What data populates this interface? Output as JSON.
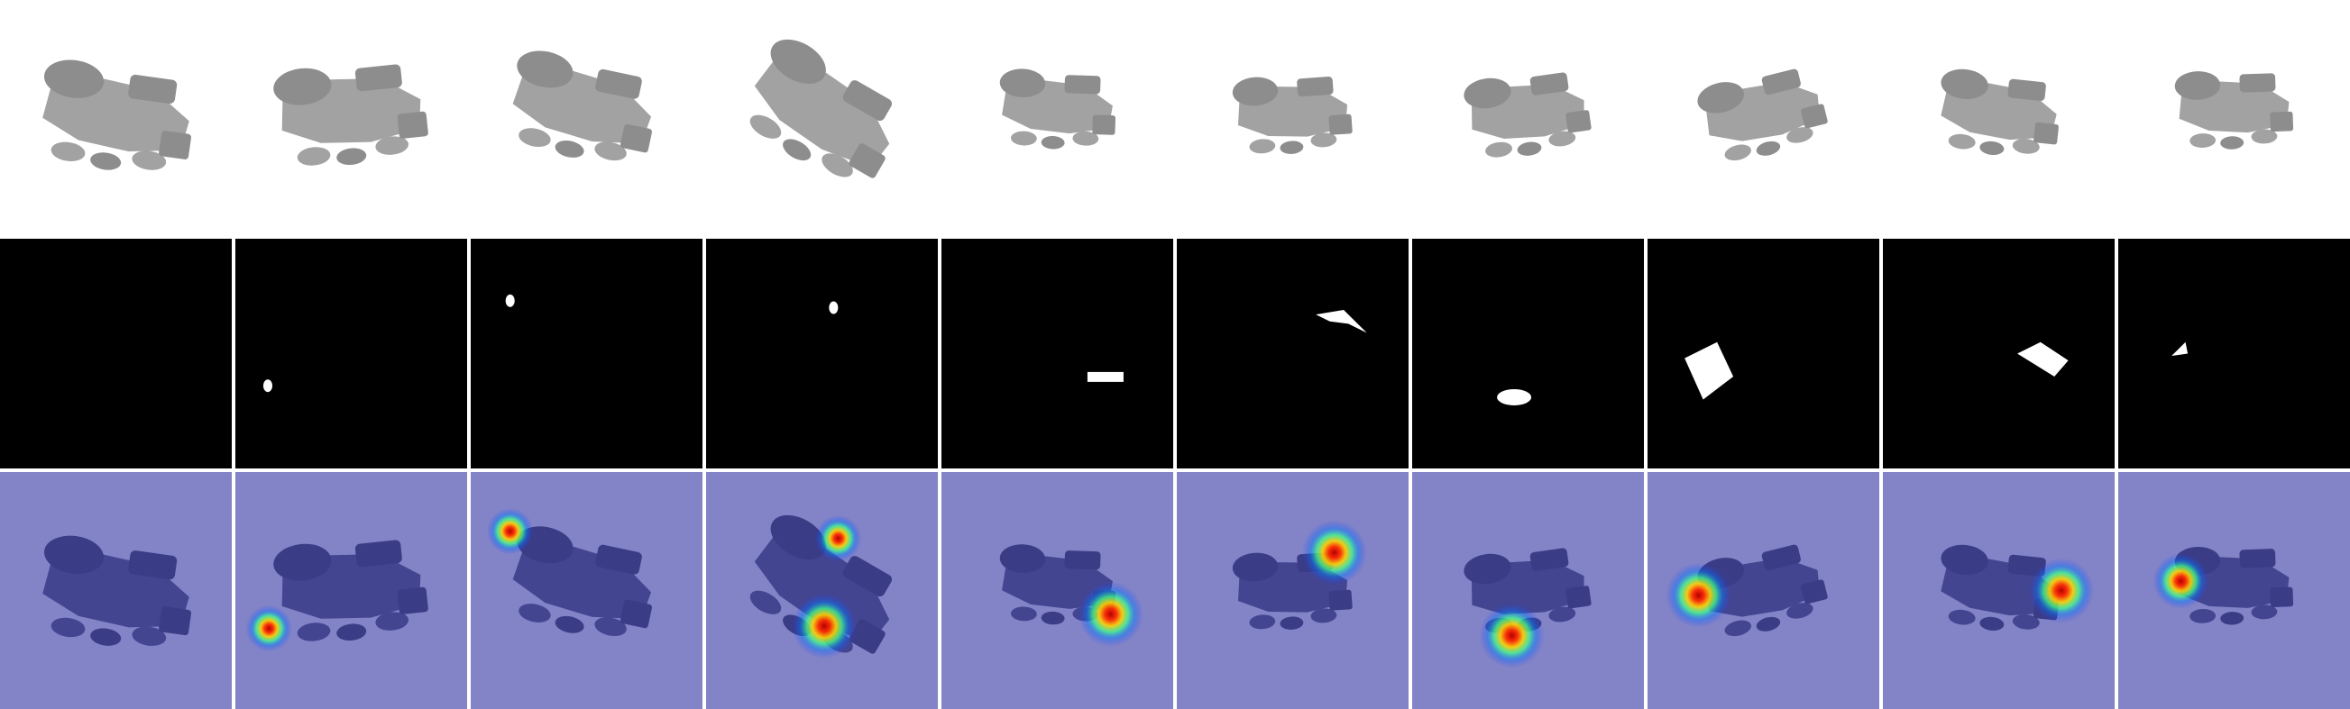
{
  "figure": {
    "rows": [
      "render",
      "mask",
      "heatmap"
    ],
    "columns": 10,
    "colors": {
      "background": "#ffffff",
      "object_gray": "#a2a2a2",
      "object_shade": "#8d8d8d",
      "mask_background": "#000000",
      "mask_fill": "#ffffff",
      "heatmap_background": "#8284c7",
      "heatmap_object": "#434591"
    },
    "panels": [
      {
        "index": 1,
        "mask_region": "none",
        "heat_peaks": []
      },
      {
        "index": 2,
        "mask_region": "tiny-speck",
        "heat_peaks": [
          {
            "u": 0.145,
            "v": 0.66,
            "s": 0.05
          }
        ]
      },
      {
        "index": 3,
        "mask_region": "tiny-speck",
        "heat_peaks": [
          {
            "u": 0.17,
            "v": 0.25,
            "s": 0.05
          }
        ]
      },
      {
        "index": 4,
        "mask_region": "tiny-speck",
        "heat_peaks": [
          {
            "u": 0.57,
            "v": 0.28,
            "s": 0.05
          },
          {
            "u": 0.51,
            "v": 0.65,
            "s": 0.07
          }
        ]
      },
      {
        "index": 5,
        "mask_region": "small-bar",
        "heat_peaks": [
          {
            "u": 0.73,
            "v": 0.6,
            "s": 0.07
          }
        ]
      },
      {
        "index": 6,
        "mask_region": "small-shard",
        "heat_peaks": [
          {
            "u": 0.68,
            "v": 0.34,
            "s": 0.07
          }
        ]
      },
      {
        "index": 7,
        "mask_region": "small-blob",
        "heat_peaks": [
          {
            "u": 0.43,
            "v": 0.69,
            "s": 0.07
          }
        ]
      },
      {
        "index": 8,
        "mask_region": "large-square",
        "heat_peaks": [
          {
            "u": 0.22,
            "v": 0.52,
            "s": 0.07
          }
        ]
      },
      {
        "index": 9,
        "mask_region": "medium-patch",
        "heat_peaks": [
          {
            "u": 0.77,
            "v": 0.5,
            "s": 0.07
          }
        ]
      },
      {
        "index": 10,
        "mask_region": "tiny-triangle",
        "heat_peaks": [
          {
            "u": 0.27,
            "v": 0.46,
            "s": 0.06
          }
        ]
      }
    ]
  }
}
